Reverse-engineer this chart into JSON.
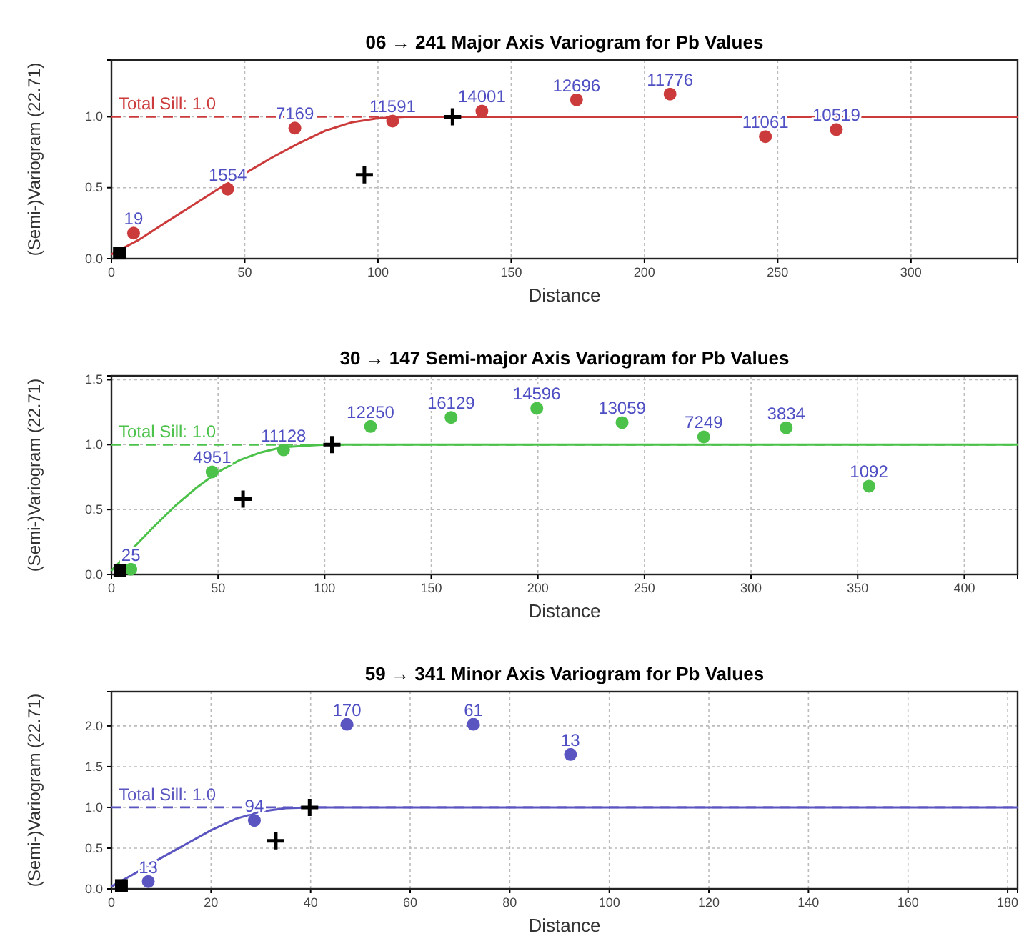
{
  "chart_data": [
    {
      "type": "scatter",
      "title": "06 → 241 Major Axis Variogram for Pb Values",
      "xlabel": "Distance",
      "ylabel": "(Semi-)Variogram (22.71)",
      "xlim": [
        0,
        340
      ],
      "ylim": [
        0,
        1.4
      ],
      "xticks": [
        0,
        50,
        100,
        150,
        200,
        250,
        300
      ],
      "yticks": [
        {
          "value": 0,
          "label": "0.0"
        },
        {
          "value": 0.5,
          "label": "0.5"
        },
        {
          "value": 1,
          "label": "1.0"
        }
      ],
      "grid": true,
      "series": [
        {
          "type": "scatter",
          "color": "#cc3b3b",
          "marker": "circle",
          "x": [
            8.3,
            43.6,
            68.8,
            105.5,
            139,
            174.5,
            209.6,
            245.4,
            272
          ],
          "values": [
            0.18,
            0.49,
            0.92,
            0.97,
            1.04,
            1.12,
            1.16,
            0.86,
            0.91
          ]
        },
        {
          "type": "line",
          "color": "#cc3b3b",
          "marker": "none",
          "line_style": "solid",
          "x": [
            0,
            10,
            20,
            30,
            40,
            50,
            60,
            70,
            80,
            90,
            100,
            110,
            340
          ],
          "values": [
            0.03,
            0.13,
            0.25,
            0.37,
            0.49,
            0.6,
            0.71,
            0.81,
            0.9,
            0.96,
            0.99,
            1.0,
            1.0
          ]
        },
        {
          "type": "scatter",
          "color": "#000000",
          "marker": "cross",
          "x": [
            94.9,
            128
          ],
          "values": [
            0.59,
            1.0
          ]
        },
        {
          "type": "scatter",
          "color": "#000000",
          "marker": "square",
          "x": [
            3
          ],
          "values": [
            0.04
          ]
        }
      ],
      "ref_lines": [
        {
          "axis": "y",
          "value": 1.0,
          "label": "Total Sill: 1.0",
          "color": "#cc3b3b",
          "line_style": "dashed"
        }
      ],
      "annotations": [
        {
          "text": "19",
          "x": 8.3,
          "y": 0.18
        },
        {
          "text": "1554",
          "x": 43.6,
          "y": 0.49
        },
        {
          "text": "7169",
          "x": 68.8,
          "y": 0.92
        },
        {
          "text": "11591",
          "x": 105.5,
          "y": 0.97
        },
        {
          "text": "14001",
          "x": 139,
          "y": 1.04
        },
        {
          "text": "12696",
          "x": 174.5,
          "y": 1.12
        },
        {
          "text": "11776",
          "x": 209.6,
          "y": 1.16
        },
        {
          "text": "11061",
          "x": 245.4,
          "y": 0.86
        },
        {
          "text": "10519",
          "x": 272,
          "y": 0.91
        }
      ]
    },
    {
      "type": "scatter",
      "title": "30 → 147 Semi-major Axis Variogram for Pb Values",
      "xlabel": "Distance",
      "ylabel": "(Semi-)Variogram (22.71)",
      "xlim": [
        0,
        425
      ],
      "ylim": [
        0,
        1.53
      ],
      "xticks": [
        0,
        50,
        100,
        150,
        200,
        250,
        300,
        350,
        400
      ],
      "yticks": [
        {
          "value": 0,
          "label": "0.0"
        },
        {
          "value": 0.5,
          "label": "0.5"
        },
        {
          "value": 1,
          "label": "1.0"
        },
        {
          "value": 1.5,
          "label": "1.5"
        }
      ],
      "grid": true,
      "series": [
        {
          "type": "scatter",
          "color": "#4cc24a",
          "marker": "circle",
          "x": [
            9.1,
            47.2,
            80.7,
            121.5,
            159.3,
            199.5,
            239.5,
            277.8,
            316.5,
            355.3
          ],
          "values": [
            0.04,
            0.79,
            0.96,
            1.14,
            1.21,
            1.28,
            1.17,
            1.06,
            1.13,
            0.68
          ]
        },
        {
          "type": "line",
          "color": "#4cc24a",
          "marker": "none",
          "line_style": "solid",
          "x": [
            0,
            10,
            20,
            30,
            40,
            50,
            60,
            70,
            80,
            90,
            100,
            425
          ],
          "values": [
            0.03,
            0.2,
            0.37,
            0.53,
            0.67,
            0.79,
            0.88,
            0.94,
            0.98,
            0.99,
            1.0,
            1.0
          ]
        },
        {
          "type": "scatter",
          "color": "#000000",
          "marker": "cross",
          "x": [
            61.7,
            103.4
          ],
          "values": [
            0.58,
            1.0
          ]
        },
        {
          "type": "scatter",
          "color": "#000000",
          "marker": "square",
          "x": [
            4
          ],
          "values": [
            0.03
          ]
        }
      ],
      "ref_lines": [
        {
          "axis": "y",
          "value": 1.0,
          "label": "Total Sill: 1.0",
          "color": "#4cc24a",
          "line_style": "dashed"
        }
      ],
      "annotations": [
        {
          "text": "25",
          "x": 9.1,
          "y": 0.04
        },
        {
          "text": "4951",
          "x": 47.2,
          "y": 0.79
        },
        {
          "text": "11128",
          "x": 80.7,
          "y": 0.96
        },
        {
          "text": "12250",
          "x": 121.5,
          "y": 1.14
        },
        {
          "text": "16129",
          "x": 159.3,
          "y": 1.21
        },
        {
          "text": "14596",
          "x": 199.5,
          "y": 1.28
        },
        {
          "text": "13059",
          "x": 239.5,
          "y": 1.17
        },
        {
          "text": "7249",
          "x": 277.8,
          "y": 1.06
        },
        {
          "text": "3834",
          "x": 316.5,
          "y": 1.13
        },
        {
          "text": "1092",
          "x": 355.3,
          "y": 0.68
        }
      ]
    },
    {
      "type": "scatter",
      "title": "59 → 341 Minor Axis Variogram for Pb Values",
      "xlabel": "Distance",
      "ylabel": "(Semi-)Variogram (22.71)",
      "xlim": [
        0,
        182
      ],
      "ylim": [
        0,
        2.42
      ],
      "xticks": [
        0,
        20,
        40,
        60,
        80,
        100,
        120,
        140,
        160,
        180
      ],
      "yticks": [
        {
          "value": 0,
          "label": "0.0"
        },
        {
          "value": 0.5,
          "label": "0.5"
        },
        {
          "value": 1,
          "label": "1.0"
        },
        {
          "value": 1.5,
          "label": "1.5"
        },
        {
          "value": 2,
          "label": "2.0"
        }
      ],
      "grid": true,
      "series": [
        {
          "type": "scatter",
          "color": "#5a55c0",
          "marker": "circle",
          "x": [
            7.4,
            28.7,
            47.3,
            72.7,
            92.2
          ],
          "values": [
            0.09,
            0.84,
            2.02,
            2.02,
            1.65
          ]
        },
        {
          "type": "line",
          "color": "#5a55c0",
          "marker": "none",
          "line_style": "solid",
          "x": [
            0,
            5,
            10,
            15,
            20,
            25,
            30,
            35,
            40,
            182
          ],
          "values": [
            0.03,
            0.2,
            0.38,
            0.55,
            0.72,
            0.86,
            0.95,
            0.99,
            1.0,
            1.0
          ]
        },
        {
          "type": "scatter",
          "color": "#000000",
          "marker": "cross",
          "x": [
            33,
            39.8
          ],
          "values": [
            0.59,
            1.0
          ]
        },
        {
          "type": "scatter",
          "color": "#000000",
          "marker": "square",
          "x": [
            2
          ],
          "values": [
            0.04
          ]
        }
      ],
      "ref_lines": [
        {
          "axis": "y",
          "value": 1.0,
          "label": "Total Sill: 1.0",
          "color": "#5a55c0",
          "line_style": "dashed"
        }
      ],
      "annotations": [
        {
          "text": "13",
          "x": 7.4,
          "y": 0.09
        },
        {
          "text": "94",
          "x": 28.7,
          "y": 0.84
        },
        {
          "text": "170",
          "x": 47.3,
          "y": 2.02
        },
        {
          "text": "61",
          "x": 72.7,
          "y": 2.02
        },
        {
          "text": "13",
          "x": 92.2,
          "y": 1.65
        }
      ]
    }
  ]
}
